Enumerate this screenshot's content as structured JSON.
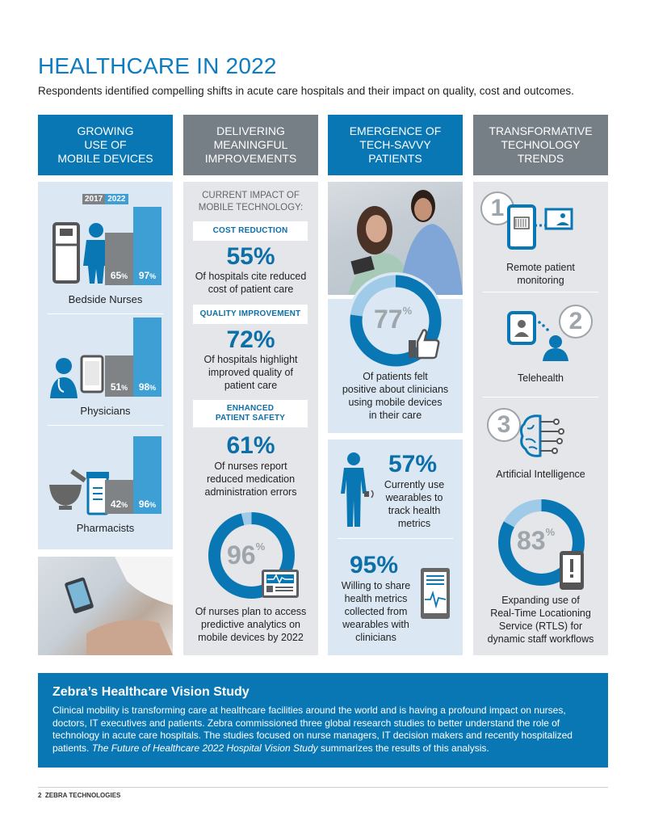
{
  "header": {
    "title": "HEALTHCARE IN 2022",
    "subtitle": "Respondents identified compelling shifts in acute care hospitals and their impact on quality, cost and outcomes."
  },
  "columns": [
    {
      "heading": "GROWING\nUSE OF\nMOBILE DEVICES",
      "color": "#0a77b5"
    },
    {
      "heading": "DELIVERING\nMEANINGFUL\nIMPROVEMENTS",
      "color": "#767e86"
    },
    {
      "heading": "EMERGENCE OF\nTECH-SAVVY\nPATIENTS",
      "color": "#0a77b5"
    },
    {
      "heading": "TRANSFORMATIVE\nTECHNOLOGY\nTRENDS",
      "color": "#767e86"
    }
  ],
  "mobile": {
    "legend": [
      "2017",
      "2022"
    ],
    "groups": [
      {
        "label": "Bedside Nurses",
        "v2017": "65",
        "v2022": "97",
        "fill2017": 0.65,
        "fill2022": 0.97,
        "icon": "nurse-bed-icon"
      },
      {
        "label": "Physicians",
        "v2017": "51",
        "v2022": "98",
        "fill2017": 0.51,
        "fill2022": 0.98,
        "icon": "physician-icon"
      },
      {
        "label": "Pharmacists",
        "v2017": "42",
        "v2022": "96",
        "fill2017": 0.42,
        "fill2022": 0.96,
        "icon": "pharmacy-icon"
      }
    ],
    "pct": "%"
  },
  "improvements": {
    "intro": "CURRENT IMPACT OF\nMOBILE TECHNOLOGY:",
    "items": [
      {
        "tag": "COST REDUCTION",
        "value": "55%",
        "text": "Of hospitals cite reduced\ncost of patient care"
      },
      {
        "tag": "QUALITY IMPROVEMENT",
        "value": "72%",
        "text": "Of hospitals highlight\nimproved quality of\npatient care"
      },
      {
        "tag": "ENHANCED\nPATIENT SAFETY",
        "value": "61%",
        "text": "Of nurses report\nreduced medication\nadministration errors"
      }
    ],
    "donut": {
      "value": "96",
      "fraction": 0.96,
      "text": "Of nurses plan to access\npredictive analytics on\nmobile devices by 2022"
    }
  },
  "patients": {
    "donut": {
      "value": "77",
      "fraction": 0.77,
      "text": "Of patients felt\npositive about clinicians\nusing mobile devices\nin their care"
    },
    "wearables": {
      "value": "57%",
      "text": "Currently use\nwearables to\ntrack health\nmetrics"
    },
    "share": {
      "value": "95%",
      "text": "Willing to share\nhealth metrics\ncollected from\nwearables with\nclinicians"
    }
  },
  "trends": {
    "items": [
      {
        "number": "1",
        "label": "Remote patient\nmonitoring"
      },
      {
        "number": "2",
        "label": "Telehealth"
      },
      {
        "number": "3",
        "label": "Artificial Intelligence"
      }
    ],
    "donut": {
      "value": "83",
      "fraction": 0.83,
      "text": "Expanding use of\nReal-Time Locationing\nService (RTLS) for\ndynamic staff workflows"
    }
  },
  "study": {
    "title": "Zebra’s Healthcare Vision Study",
    "body_pre": "Clinical mobility is transforming care at healthcare facilities around the world and is having a profound impact on nurses, doctors, IT executives and patients. Zebra commissioned three global research studies to better understand the role of technology in acute care hospitals. The studies focused on nurse managers, IT decision makers and recently hospitalized patients. ",
    "body_italic": "The Future of Healthcare 2022 Hospital Vision Study",
    "body_post": " summarizes the results of this analysis."
  },
  "footer": {
    "page_number": "2",
    "company": "ZEBRA TECHNOLOGIES"
  },
  "colors": {
    "brand_blue": "#0a77b5",
    "accent_blue": "#3d9fd4",
    "gray": "#767e86",
    "light_panel": "#e4e6e9"
  }
}
